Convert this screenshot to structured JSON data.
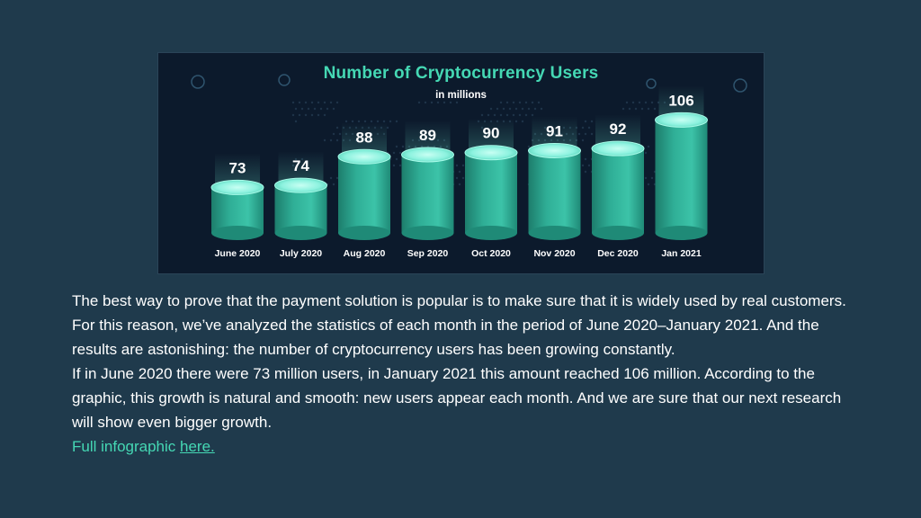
{
  "colors": {
    "background": "#1f3a4c",
    "panel": "#0c1a2c",
    "accent": "#45d8b4",
    "cylinder_body": "#2fae96",
    "cylinder_top": "#8df2df",
    "text": "#ffffff"
  },
  "chart_data": {
    "type": "bar",
    "title": "Number of Cryptocurrency Users",
    "subtitle": "in millions",
    "categories": [
      "June 2020",
      "July 2020",
      "Aug 2020",
      "Sep 2020",
      "Oct 2020",
      "Nov 2020",
      "Dec 2020",
      "Jan 2021"
    ],
    "values": [
      73,
      74,
      88,
      89,
      90,
      91,
      92,
      106
    ],
    "value_labels": [
      "73",
      "74",
      "88",
      "89",
      "90",
      "91",
      "92",
      "106"
    ],
    "unit": "million users",
    "style": "3d-cylinder",
    "xlabel": "",
    "ylabel": ""
  },
  "article": {
    "paragraph1": "The best way to prove that the payment solution is popular is to make sure that it is widely used by real customers. For this reason, we’ve analyzed the statistics of each month in the period of June 2020–January 2021. And the results are astonishing: the number of cryptocurrency users has been growing constantly.",
    "paragraph2": "If in June 2020 there were 73 million users, in January 2021 this amount reached 106 million. According to the graphic, this growth is natural and smooth: new users appear each month. And we are sure that our next research will show even bigger growth.",
    "link_prefix": "Full infographic ",
    "link_text": "here."
  }
}
